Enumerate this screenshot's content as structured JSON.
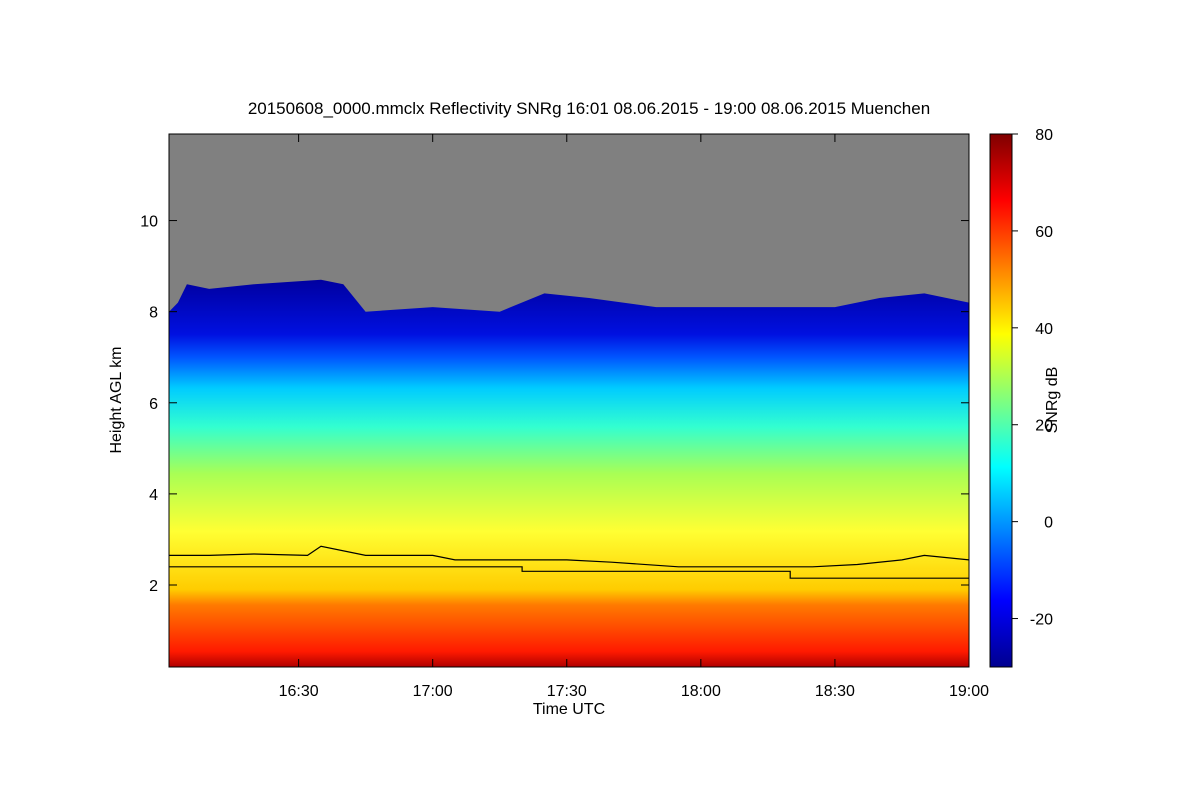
{
  "chart_data": {
    "type": "heatmap",
    "title": "20150608_0000.mmclx Reflectivity SNRg   16:01 08.06.2015 - 19:00 08.06.2015 Muenchen",
    "xlabel": "Time UTC",
    "ylabel": "Height AGL km",
    "colorbar_label": "SNRg dB",
    "x_ticks": [
      "16:30",
      "17:00",
      "17:30",
      "18:00",
      "18:30",
      "19:00"
    ],
    "y_ticks": [
      2,
      4,
      6,
      8,
      10
    ],
    "colorbar_ticks": [
      -20,
      0,
      20,
      40,
      60,
      80
    ],
    "xlim": [
      "16:01",
      "19:00"
    ],
    "ylim_km": [
      0.2,
      11.9
    ],
    "clim_db": [
      -30,
      80
    ],
    "colormap": "jet",
    "no_signal_color": "#808080",
    "signal_top_km": [
      [
        "16:01",
        8.0
      ],
      [
        "16:03",
        8.2
      ],
      [
        "16:05",
        8.6
      ],
      [
        "16:10",
        8.5
      ],
      [
        "16:20",
        8.6
      ],
      [
        "16:35",
        8.7
      ],
      [
        "16:40",
        8.6
      ],
      [
        "16:45",
        8.0
      ],
      [
        "17:00",
        8.1
      ],
      [
        "17:15",
        8.0
      ],
      [
        "17:25",
        8.4
      ],
      [
        "17:35",
        8.3
      ],
      [
        "17:50",
        8.1
      ],
      [
        "18:00",
        8.1
      ],
      [
        "18:15",
        8.1
      ],
      [
        "18:30",
        8.1
      ],
      [
        "18:40",
        8.3
      ],
      [
        "18:50",
        8.4
      ],
      [
        "19:00",
        8.2
      ]
    ],
    "lines": [
      {
        "points": [
          [
            "16:01",
            2.65
          ],
          [
            "16:10",
            2.65
          ],
          [
            "16:20",
            2.68
          ],
          [
            "16:32",
            2.65
          ],
          [
            "16:35",
            2.85
          ],
          [
            "16:45",
            2.65
          ],
          [
            "17:00",
            2.65
          ],
          [
            "17:05",
            2.55
          ],
          [
            "17:20",
            2.55
          ],
          [
            "17:30",
            2.55
          ],
          [
            "17:40",
            2.5
          ],
          [
            "17:55",
            2.4
          ],
          [
            "18:10",
            2.4
          ],
          [
            "18:25",
            2.4
          ],
          [
            "18:35",
            2.45
          ],
          [
            "18:45",
            2.55
          ],
          [
            "18:50",
            2.65
          ],
          [
            "19:00",
            2.55
          ]
        ]
      },
      {
        "points": [
          [
            "16:01",
            2.4
          ],
          [
            "17:20",
            2.4
          ],
          [
            "17:20",
            2.3
          ],
          [
            "18:20",
            2.3
          ],
          [
            "18:20",
            2.15
          ],
          [
            "19:00",
            2.15
          ]
        ]
      }
    ]
  }
}
